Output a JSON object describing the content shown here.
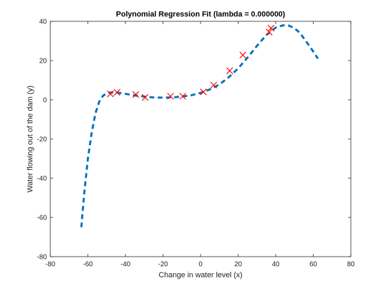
{
  "chart_data": {
    "type": "line",
    "title": "Polynomial Regression Fit (lambda = 0.000000)",
    "xlabel": "Change in water level (x)",
    "ylabel": "Water flowing out of the dam (y)",
    "xlim": [
      -80,
      80
    ],
    "ylim": [
      -80,
      40
    ],
    "xticks": [
      -80,
      -60,
      -40,
      -20,
      0,
      20,
      40,
      60,
      80
    ],
    "yticks": [
      -80,
      -60,
      -40,
      -20,
      0,
      20,
      40
    ],
    "grid": false,
    "series": [
      {
        "style": "dashed-line",
        "color": "#0072bd",
        "x": [
          -63.5,
          -62,
          -60,
          -58,
          -56,
          -54,
          -52,
          -50,
          -48,
          -46,
          -44,
          -40,
          -35,
          -30,
          -25,
          -20,
          -15,
          -10,
          -5,
          0,
          5,
          10,
          15,
          20,
          25,
          30,
          35,
          40,
          44,
          47,
          50,
          53,
          56,
          59,
          62.5
        ],
        "y": [
          -65,
          -48,
          -30,
          -17,
          -7,
          -1,
          2,
          3.3,
          3.7,
          3.8,
          3.6,
          3.0,
          2.2,
          1.6,
          1.2,
          1.1,
          1.2,
          1.6,
          2.3,
          3.5,
          5.3,
          7.8,
          11.5,
          16,
          21.5,
          27.5,
          33,
          36.8,
          38,
          37.8,
          36.5,
          34,
          30,
          26,
          21
        ]
      },
      {
        "style": "markers-x",
        "color": "#ff0000",
        "x": [
          -48,
          -44.5,
          -34.5,
          -29.5,
          -16,
          -9.5,
          1.5,
          7,
          15.5,
          22.5,
          36.5,
          37.5
        ],
        "y": [
          3.0,
          3.8,
          2.7,
          1.2,
          1.8,
          1.8,
          4.0,
          7.5,
          14.8,
          22.8,
          34.5,
          36.5
        ]
      }
    ]
  }
}
